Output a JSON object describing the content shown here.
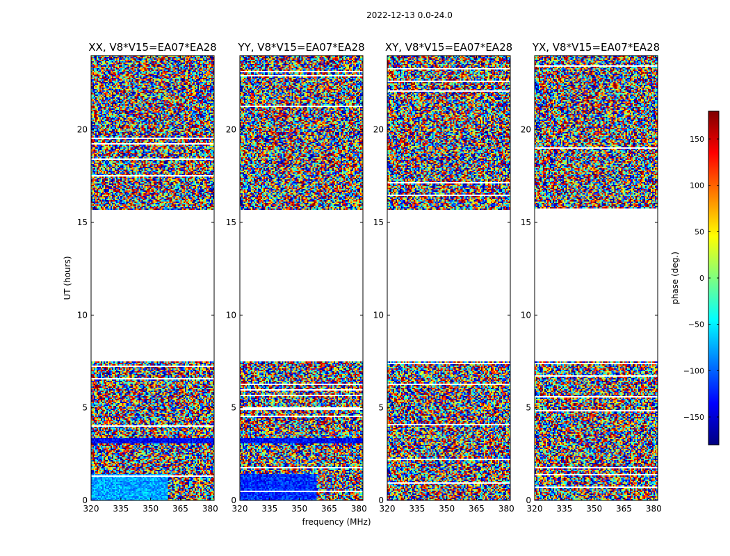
{
  "figure": {
    "suptitle": "2022-12-13 0.0-24.0",
    "colormap": "jet",
    "colormap_stops": [
      "#00007f",
      "#0000ff",
      "#007fff",
      "#00ffff",
      "#7fff7f",
      "#ffff00",
      "#ff7f00",
      "#ff0000",
      "#7f0000"
    ]
  },
  "chart_data": [
    {
      "type": "heatmap",
      "title": "XX, V8*V15=EA07*EA28",
      "xlabel": "",
      "ylabel": "UT (hours)",
      "xlim": [
        320,
        382
      ],
      "ylim": [
        0,
        24
      ],
      "xticks": [
        320,
        335,
        350,
        365,
        380
      ],
      "yticks": [
        0,
        5,
        10,
        15,
        20
      ],
      "data_gap_hours": [
        7.5,
        15.7
      ],
      "value": "phase (deg.)"
    },
    {
      "type": "heatmap",
      "title": "YY, V8*V15=EA07*EA28",
      "xlabel": "frequency (MHz)",
      "ylabel": "",
      "xlim": [
        320,
        382
      ],
      "ylim": [
        0,
        24
      ],
      "xticks": [
        320,
        335,
        350,
        365,
        380
      ],
      "yticks": [
        0,
        5,
        10,
        15,
        20
      ],
      "data_gap_hours": [
        7.5,
        15.7
      ],
      "value": "phase (deg.)"
    },
    {
      "type": "heatmap",
      "title": "XY, V8*V15=EA07*EA28",
      "xlabel": "",
      "ylabel": "",
      "xlim": [
        320,
        382
      ],
      "ylim": [
        0,
        24
      ],
      "xticks": [
        320,
        335,
        350,
        365,
        380
      ],
      "yticks": [
        0,
        5,
        10,
        15,
        20
      ],
      "data_gap_hours": [
        7.5,
        15.7
      ],
      "value": "phase (deg.)"
    },
    {
      "type": "heatmap",
      "title": "YX, V8*V15=EA07*EA28",
      "xlabel": "",
      "ylabel": "",
      "xlim": [
        320,
        382
      ],
      "ylim": [
        0,
        24
      ],
      "xticks": [
        320,
        335,
        350,
        365,
        380
      ],
      "yticks": [
        0,
        5,
        10,
        15,
        20
      ],
      "data_gap_hours": [
        7.5,
        15.7
      ],
      "value": "phase (deg.)"
    }
  ],
  "colorbar": {
    "label": "phase (deg.)",
    "range": [
      -180,
      180
    ],
    "ticks": [
      -150,
      -100,
      -50,
      0,
      50,
      100,
      150
    ],
    "tick_labels": [
      "−150",
      "−100",
      "−50",
      "0",
      "50",
      "100",
      "150"
    ]
  }
}
